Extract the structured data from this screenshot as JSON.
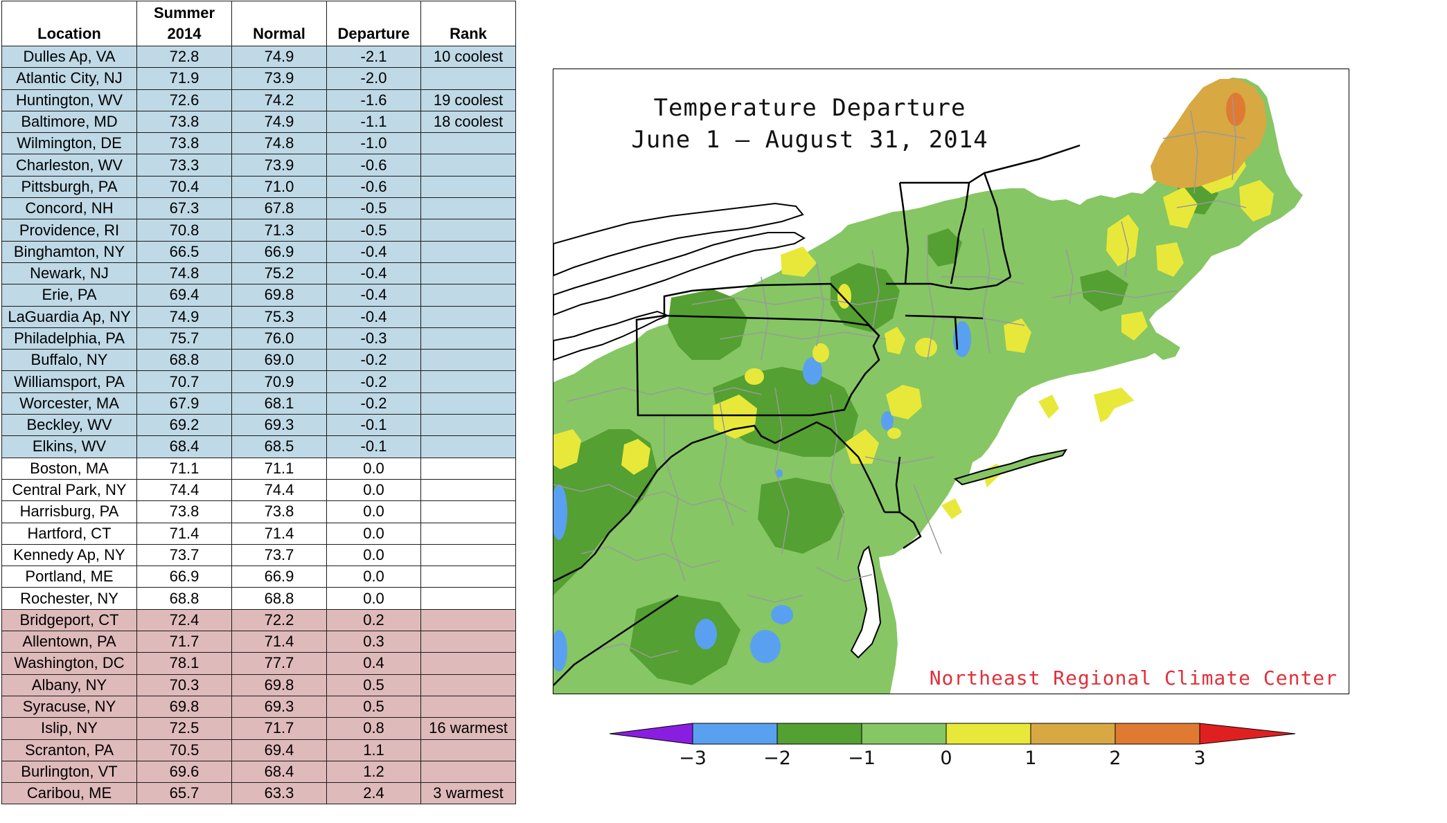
{
  "table": {
    "headers": {
      "location": "Location",
      "summer_line1": "Summer",
      "summer_line2": "2014",
      "normal": "Normal",
      "departure": "Departure",
      "rank": "Rank"
    },
    "rows": [
      {
        "location": "Dulles Ap, VA",
        "summer": "72.8",
        "normal": "74.9",
        "departure": "-2.1",
        "rank": "10 coolest",
        "group": "cool"
      },
      {
        "location": "Atlantic City, NJ",
        "summer": "71.9",
        "normal": "73.9",
        "departure": "-2.0",
        "rank": "",
        "group": "cool"
      },
      {
        "location": "Huntington, WV",
        "summer": "72.6",
        "normal": "74.2",
        "departure": "-1.6",
        "rank": "19 coolest",
        "group": "cool"
      },
      {
        "location": "Baltimore, MD",
        "summer": "73.8",
        "normal": "74.9",
        "departure": "-1.1",
        "rank": "18 coolest",
        "group": "cool"
      },
      {
        "location": "Wilmington, DE",
        "summer": "73.8",
        "normal": "74.8",
        "departure": "-1.0",
        "rank": "",
        "group": "cool"
      },
      {
        "location": "Charleston, WV",
        "summer": "73.3",
        "normal": "73.9",
        "departure": "-0.6",
        "rank": "",
        "group": "cool"
      },
      {
        "location": "Pittsburgh, PA",
        "summer": "70.4",
        "normal": "71.0",
        "departure": "-0.6",
        "rank": "",
        "group": "cool"
      },
      {
        "location": "Concord, NH",
        "summer": "67.3",
        "normal": "67.8",
        "departure": "-0.5",
        "rank": "",
        "group": "cool"
      },
      {
        "location": "Providence, RI",
        "summer": "70.8",
        "normal": "71.3",
        "departure": "-0.5",
        "rank": "",
        "group": "cool"
      },
      {
        "location": "Binghamton, NY",
        "summer": "66.5",
        "normal": "66.9",
        "departure": "-0.4",
        "rank": "",
        "group": "cool"
      },
      {
        "location": "Newark, NJ",
        "summer": "74.8",
        "normal": "75.2",
        "departure": "-0.4",
        "rank": "",
        "group": "cool"
      },
      {
        "location": "Erie, PA",
        "summer": "69.4",
        "normal": "69.8",
        "departure": "-0.4",
        "rank": "",
        "group": "cool"
      },
      {
        "location": "LaGuardia Ap, NY",
        "summer": "74.9",
        "normal": "75.3",
        "departure": "-0.4",
        "rank": "",
        "group": "cool"
      },
      {
        "location": "Philadelphia, PA",
        "summer": "75.7",
        "normal": "76.0",
        "departure": "-0.3",
        "rank": "",
        "group": "cool"
      },
      {
        "location": "Buffalo, NY",
        "summer": "68.8",
        "normal": "69.0",
        "departure": "-0.2",
        "rank": "",
        "group": "cool"
      },
      {
        "location": "Williamsport, PA",
        "summer": "70.7",
        "normal": "70.9",
        "departure": "-0.2",
        "rank": "",
        "group": "cool"
      },
      {
        "location": "Worcester, MA",
        "summer": "67.9",
        "normal": "68.1",
        "departure": "-0.2",
        "rank": "",
        "group": "cool"
      },
      {
        "location": "Beckley, WV",
        "summer": "69.2",
        "normal": "69.3",
        "departure": "-0.1",
        "rank": "",
        "group": "cool"
      },
      {
        "location": "Elkins, WV",
        "summer": "68.4",
        "normal": "68.5",
        "departure": "-0.1",
        "rank": "",
        "group": "cool"
      },
      {
        "location": "Boston, MA",
        "summer": "71.1",
        "normal": "71.1",
        "departure": "0.0",
        "rank": "",
        "group": "neutral"
      },
      {
        "location": "Central Park, NY",
        "summer": "74.4",
        "normal": "74.4",
        "departure": "0.0",
        "rank": "",
        "group": "neutral"
      },
      {
        "location": "Harrisburg, PA",
        "summer": "73.8",
        "normal": "73.8",
        "departure": "0.0",
        "rank": "",
        "group": "neutral"
      },
      {
        "location": "Hartford, CT",
        "summer": "71.4",
        "normal": "71.4",
        "departure": "0.0",
        "rank": "",
        "group": "neutral"
      },
      {
        "location": "Kennedy Ap, NY",
        "summer": "73.7",
        "normal": "73.7",
        "departure": "0.0",
        "rank": "",
        "group": "neutral"
      },
      {
        "location": "Portland, ME",
        "summer": "66.9",
        "normal": "66.9",
        "departure": "0.0",
        "rank": "",
        "group": "neutral"
      },
      {
        "location": "Rochester, NY",
        "summer": "68.8",
        "normal": "68.8",
        "departure": "0.0",
        "rank": "",
        "group": "neutral"
      },
      {
        "location": "Bridgeport, CT",
        "summer": "72.4",
        "normal": "72.2",
        "departure": "0.2",
        "rank": "",
        "group": "warm"
      },
      {
        "location": "Allentown, PA",
        "summer": "71.7",
        "normal": "71.4",
        "departure": "0.3",
        "rank": "",
        "group": "warm"
      },
      {
        "location": "Washington, DC",
        "summer": "78.1",
        "normal": "77.7",
        "departure": "0.4",
        "rank": "",
        "group": "warm"
      },
      {
        "location": "Albany, NY",
        "summer": "70.3",
        "normal": "69.8",
        "departure": "0.5",
        "rank": "",
        "group": "warm"
      },
      {
        "location": "Syracuse, NY",
        "summer": "69.8",
        "normal": "69.3",
        "departure": "0.5",
        "rank": "",
        "group": "warm"
      },
      {
        "location": "Islip, NY",
        "summer": "72.5",
        "normal": "71.7",
        "departure": "0.8",
        "rank": "16 warmest",
        "group": "warm"
      },
      {
        "location": "Scranton, PA",
        "summer": "70.5",
        "normal": "69.4",
        "departure": "1.1",
        "rank": "",
        "group": "warm"
      },
      {
        "location": "Burlington, VT",
        "summer": "69.6",
        "normal": "68.4",
        "departure": "1.2",
        "rank": "",
        "group": "warm"
      },
      {
        "location": "Caribou, ME",
        "summer": "65.7",
        "normal": "63.3",
        "departure": "2.4",
        "rank": "3 warmest",
        "group": "warm"
      }
    ]
  },
  "map": {
    "title_line1": "Temperature Departure",
    "title_line2": "June 1 — August 31, 2014",
    "credit": "Northeast Regional Climate Center"
  },
  "legend": {
    "labels": [
      "−3",
      "−2",
      "−1",
      "0",
      "1",
      "2",
      "3"
    ],
    "colors": {
      "below_min": "#8a1ee0",
      "m3_m2": "#5aa0f0",
      "m2_m1": "#54a032",
      "m1_0": "#86c664",
      "p0_1": "#e8e83a",
      "p1_2": "#d8a842",
      "p2_3": "#e07a32",
      "above_max": "#e02020"
    }
  }
}
